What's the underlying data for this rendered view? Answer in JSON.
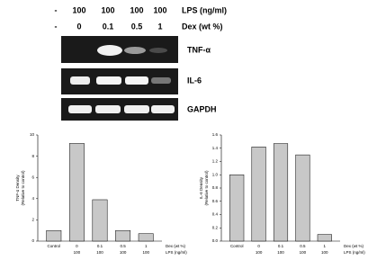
{
  "gel": {
    "lps_label": "LPS (ng/ml)",
    "dex_label": "Dex (wt %)",
    "lps": [
      "-",
      "100",
      "100",
      "100",
      "100"
    ],
    "dex": [
      "-",
      "0",
      "0.1",
      "0.5",
      "1"
    ],
    "bands": [
      "TNF-α",
      "IL-6",
      "GAPDH"
    ]
  },
  "chart_data": [
    {
      "type": "bar",
      "ylabel": [
        "TNF-α Density",
        "(Relative to control)"
      ],
      "categories": [
        "Control",
        "0",
        "0.1",
        "0.5",
        "1"
      ],
      "lps": [
        null,
        "100",
        "100",
        "100",
        "100"
      ],
      "row_labels": [
        "Dex (wt %)",
        "LPS (ng/ml)"
      ],
      "values": [
        1,
        9.2,
        3.9,
        1,
        0.7
      ],
      "color": "#c8c8c8",
      "ylim": [
        0,
        10
      ],
      "yticks": [
        0,
        2,
        4,
        6,
        8,
        10
      ]
    },
    {
      "type": "bar",
      "ylabel": [
        "IL-6 Density",
        "(Relative to control)"
      ],
      "categories": [
        "Control",
        "0",
        "0.1",
        "0.5",
        "1"
      ],
      "lps": [
        null,
        "100",
        "100",
        "100",
        "100"
      ],
      "row_labels": [
        "Dex (wt %)",
        "LPS (ng/ml)"
      ],
      "values": [
        1,
        1.42,
        1.47,
        1.3,
        0.1
      ],
      "color": "#c8c8c8",
      "ylim": [
        0,
        1.6
      ],
      "yticks": [
        {
          "value": 0,
          "label": "0.0"
        },
        {
          "value": 0.2,
          "label": "0.2"
        },
        {
          "value": 0.4,
          "label": "0.4"
        },
        {
          "value": 0.6,
          "label": "0.6"
        },
        {
          "value": 0.8,
          "label": "0.8"
        },
        {
          "value": 1,
          "label": "1.0"
        },
        {
          "value": 1.2,
          "label": "1.2"
        },
        {
          "value": 1.4,
          "label": "1.4"
        },
        {
          "value": 1.6,
          "label": "1.6"
        }
      ]
    }
  ]
}
